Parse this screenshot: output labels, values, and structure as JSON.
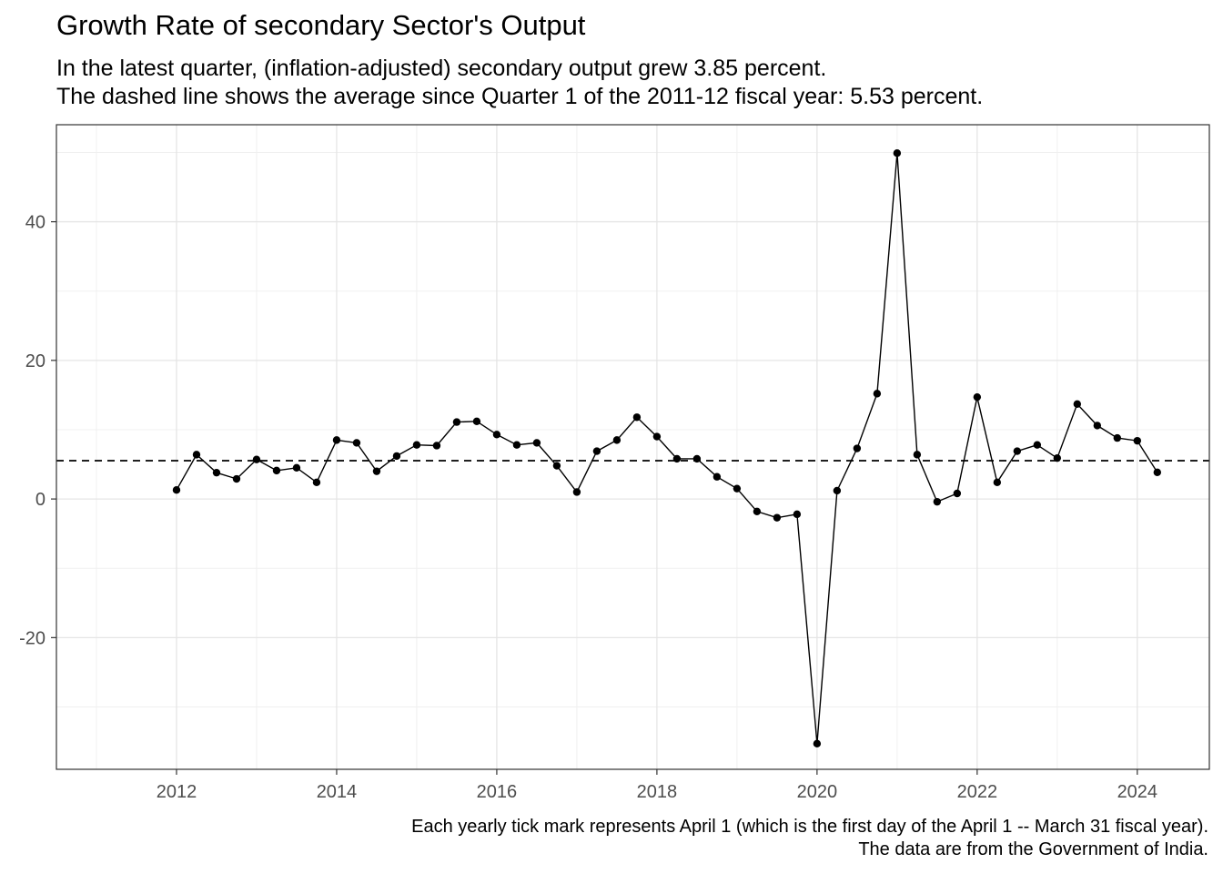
{
  "title": "Growth Rate of secondary Sector's Output",
  "subtitle_line1": "In the latest quarter, (inflation-adjusted) secondary output grew 3.85 percent.",
  "subtitle_line2": "The dashed line shows the average since Quarter 1 of the 2011-12 fiscal year: 5.53 percent.",
  "caption_line1": "Each yearly tick mark represents April 1 (which is the first day of the April 1 -- March 31 fiscal year).",
  "caption_line2": "The data are from the Government of India.",
  "chart_data": {
    "type": "line",
    "title": "Growth Rate of secondary Sector's Output",
    "xlabel": "",
    "ylabel": "",
    "x_ticks": [
      "2012",
      "2014",
      "2016",
      "2018",
      "2020",
      "2022",
      "2024"
    ],
    "y_ticks": [
      "-20",
      "0",
      "20",
      "40"
    ],
    "xlim": [
      2010.5,
      2024.9
    ],
    "ylim": [
      -39,
      54
    ],
    "grid": true,
    "average_line": {
      "value": 5.53,
      "style": "dashed"
    },
    "series": [
      {
        "x": [
          2012.0,
          2012.25,
          2012.5,
          2012.75,
          2013.0,
          2013.25,
          2013.5,
          2013.75,
          2014.0,
          2014.25,
          2014.5,
          2014.75,
          2015.0,
          2015.25,
          2015.5,
          2015.75,
          2016.0,
          2016.25,
          2016.5,
          2016.75,
          2017.0,
          2017.25,
          2017.5,
          2017.75,
          2018.0,
          2018.25,
          2018.5,
          2018.75,
          2019.0,
          2019.25,
          2019.5,
          2019.75,
          2020.0,
          2020.25,
          2020.5,
          2020.75,
          2021.0,
          2021.25,
          2021.5,
          2021.75,
          2022.0,
          2022.25,
          2022.5,
          2022.75,
          2023.0,
          2023.25,
          2023.5,
          2023.75,
          2024.0,
          2024.25
        ],
        "values": [
          1.3,
          6.4,
          3.8,
          2.9,
          5.7,
          4.1,
          4.5,
          2.4,
          8.5,
          8.1,
          4.0,
          6.2,
          7.8,
          7.7,
          11.1,
          11.2,
          9.3,
          7.8,
          8.1,
          4.8,
          1.0,
          6.9,
          8.5,
          11.8,
          9.0,
          5.8,
          5.8,
          3.2,
          1.5,
          -1.8,
          -2.7,
          -2.2,
          -35.3,
          1.2,
          7.3,
          15.2,
          49.9,
          6.4,
          -0.4,
          0.8,
          14.7,
          2.4,
          6.9,
          7.8,
          5.9,
          13.7,
          10.6,
          8.8,
          8.4,
          3.85
        ]
      }
    ]
  }
}
